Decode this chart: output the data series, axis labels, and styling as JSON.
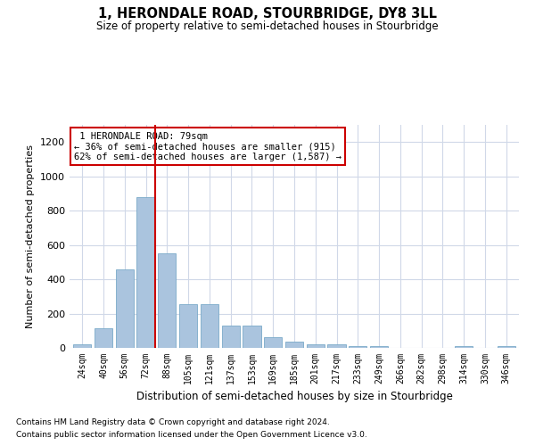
{
  "title": "1, HERONDALE ROAD, STOURBRIDGE, DY8 3LL",
  "subtitle": "Size of property relative to semi-detached houses in Stourbridge",
  "xlabel": "Distribution of semi-detached houses by size in Stourbridge",
  "ylabel": "Number of semi-detached properties",
  "categories": [
    "24sqm",
    "40sqm",
    "56sqm",
    "72sqm",
    "88sqm",
    "105sqm",
    "121sqm",
    "137sqm",
    "153sqm",
    "169sqm",
    "185sqm",
    "201sqm",
    "217sqm",
    "233sqm",
    "249sqm",
    "266sqm",
    "282sqm",
    "298sqm",
    "314sqm",
    "330sqm",
    "346sqm"
  ],
  "values": [
    20,
    115,
    460,
    880,
    550,
    255,
    255,
    130,
    130,
    60,
    35,
    20,
    20,
    10,
    10,
    0,
    0,
    0,
    10,
    0,
    10
  ],
  "bar_color": "#aac4de",
  "bar_edge_color": "#7aaac8",
  "grid_color": "#d0d8e8",
  "background_color": "#ffffff",
  "marker_label": "1 HERONDALE ROAD: 79sqm",
  "pct_smaller": 36,
  "pct_smaller_n": 915,
  "pct_larger": 62,
  "pct_larger_n": 1587,
  "annotation_box_color": "#ffffff",
  "annotation_box_edge": "#cc0000",
  "marker_line_color": "#cc0000",
  "ylim": [
    0,
    1300
  ],
  "yticks": [
    0,
    200,
    400,
    600,
    800,
    1000,
    1200
  ],
  "footnote1": "Contains HM Land Registry data © Crown copyright and database right 2024.",
  "footnote2": "Contains public sector information licensed under the Open Government Licence v3.0."
}
